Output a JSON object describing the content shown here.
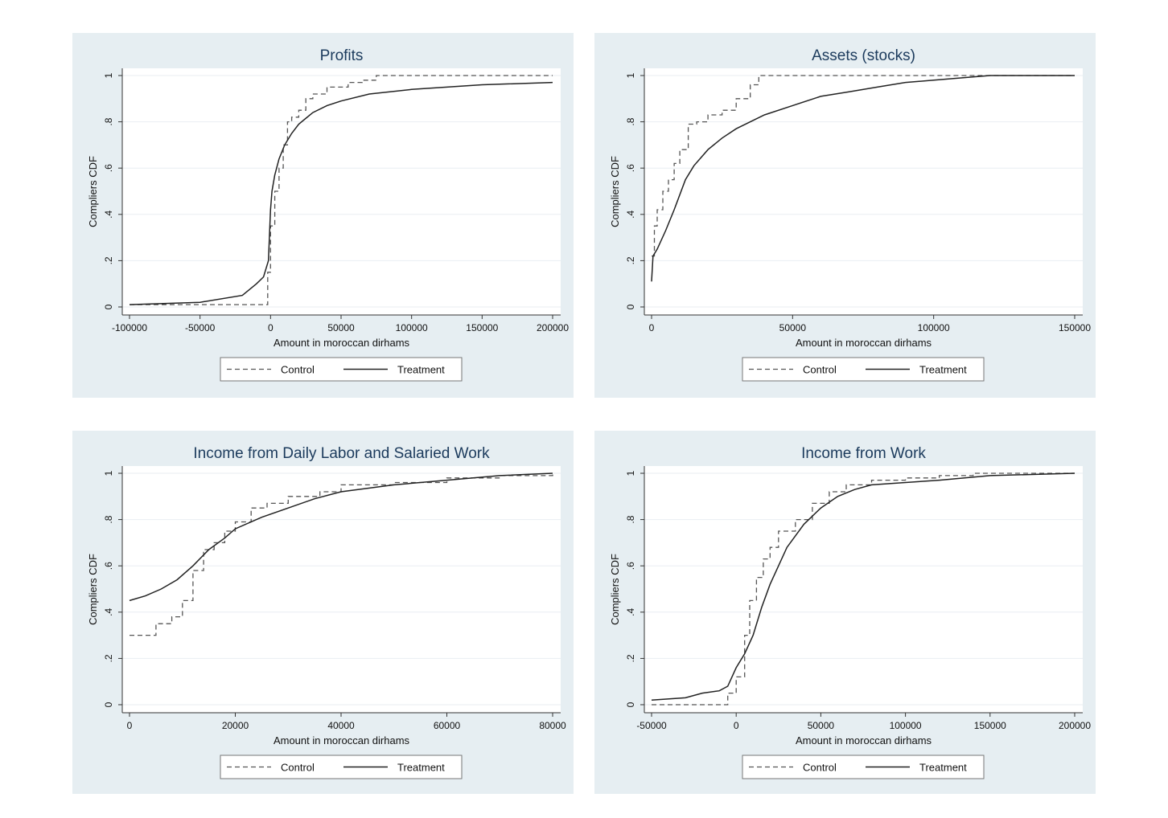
{
  "chart_data": [
    {
      "type": "line",
      "title": "Profits",
      "xlabel": "Amount in moroccan dirhams",
      "ylabel": "Compliers CDF",
      "xlim": [
        -100000,
        200000
      ],
      "ylim": [
        0,
        1
      ],
      "xticks": [
        -100000,
        -50000,
        0,
        50000,
        100000,
        150000,
        200000
      ],
      "xtick_labels": [
        "-100000",
        "-50000",
        "0",
        "50000",
        "100000",
        "150000",
        "200000"
      ],
      "yticks": [
        0,
        0.2,
        0.4,
        0.6,
        0.8,
        1
      ],
      "ytick_labels": [
        "0",
        ".2",
        ".4",
        ".6",
        ".8",
        "1"
      ],
      "grid": true,
      "legend": "bottom",
      "series": [
        {
          "name": "Control",
          "style": "dashed",
          "step": true,
          "x": [
            -100000,
            -5000,
            -2000,
            0,
            3000,
            6000,
            9000,
            12000,
            15000,
            20000,
            25000,
            30000,
            40000,
            55000,
            65000,
            75000,
            200000
          ],
          "y": [
            0.01,
            0.01,
            0.15,
            0.35,
            0.5,
            0.6,
            0.7,
            0.8,
            0.82,
            0.85,
            0.9,
            0.92,
            0.95,
            0.97,
            0.98,
            1.0,
            1.0
          ]
        },
        {
          "name": "Treatment",
          "style": "solid",
          "step": false,
          "x": [
            -100000,
            -50000,
            -20000,
            -10000,
            -5000,
            -1500,
            0,
            1000,
            3000,
            6000,
            10000,
            15000,
            20000,
            30000,
            40000,
            50000,
            70000,
            100000,
            150000,
            200000
          ],
          "y": [
            0.01,
            0.02,
            0.05,
            0.1,
            0.13,
            0.2,
            0.42,
            0.5,
            0.57,
            0.64,
            0.7,
            0.75,
            0.79,
            0.84,
            0.87,
            0.89,
            0.92,
            0.94,
            0.96,
            0.97
          ]
        }
      ]
    },
    {
      "type": "line",
      "title": "Assets (stocks)",
      "xlabel": "Amount in moroccan dirhams",
      "ylabel": "Compliers CDF",
      "xlim": [
        0,
        150000
      ],
      "ylim": [
        0,
        1
      ],
      "xticks": [
        0,
        50000,
        100000,
        150000
      ],
      "xtick_labels": [
        "0",
        "50000",
        "100000",
        "150000"
      ],
      "yticks": [
        0,
        0.2,
        0.4,
        0.6,
        0.8,
        1
      ],
      "ytick_labels": [
        "0",
        ".2",
        ".4",
        ".6",
        ".8",
        "1"
      ],
      "grid": true,
      "legend": "bottom",
      "series": [
        {
          "name": "Control",
          "style": "dashed",
          "step": true,
          "x": [
            0,
            1000,
            2000,
            4000,
            6000,
            8000,
            10000,
            13000,
            16000,
            20000,
            25000,
            30000,
            35000,
            38000,
            150000
          ],
          "y": [
            0.22,
            0.35,
            0.42,
            0.5,
            0.55,
            0.62,
            0.68,
            0.79,
            0.8,
            0.83,
            0.85,
            0.9,
            0.96,
            1.0,
            1.0
          ]
        },
        {
          "name": "Treatment",
          "style": "solid",
          "step": false,
          "x": [
            0,
            500,
            2000,
            5000,
            8000,
            12000,
            15000,
            20000,
            25000,
            30000,
            40000,
            50000,
            60000,
            70000,
            80000,
            90000,
            100000,
            120000,
            150000
          ],
          "y": [
            0.11,
            0.22,
            0.25,
            0.33,
            0.42,
            0.55,
            0.61,
            0.68,
            0.73,
            0.77,
            0.83,
            0.87,
            0.91,
            0.93,
            0.95,
            0.97,
            0.98,
            1.0,
            1.0
          ]
        }
      ]
    },
    {
      "type": "line",
      "title": "Income from Daily Labor and Salaried Work",
      "xlabel": "Amount in moroccan dirhams",
      "ylabel": "Compliers CDF",
      "xlim": [
        0,
        80000
      ],
      "ylim": [
        0,
        1
      ],
      "xticks": [
        0,
        20000,
        40000,
        60000,
        80000
      ],
      "xtick_labels": [
        "0",
        "20000",
        "40000",
        "60000",
        "80000"
      ],
      "yticks": [
        0,
        0.2,
        0.4,
        0.6,
        0.8,
        1
      ],
      "ytick_labels": [
        "0",
        ".2",
        ".4",
        ".6",
        ".8",
        "1"
      ],
      "grid": true,
      "legend": "bottom",
      "series": [
        {
          "name": "Control",
          "style": "dashed",
          "step": true,
          "x": [
            0,
            5000,
            8000,
            10000,
            12000,
            14000,
            16000,
            18000,
            20000,
            23000,
            26000,
            30000,
            36000,
            40000,
            50000,
            60000,
            70000,
            80000
          ],
          "y": [
            0.3,
            0.35,
            0.38,
            0.45,
            0.58,
            0.67,
            0.7,
            0.75,
            0.79,
            0.85,
            0.87,
            0.9,
            0.92,
            0.95,
            0.96,
            0.98,
            0.99,
            1.0
          ]
        },
        {
          "name": "Treatment",
          "style": "solid",
          "step": false,
          "x": [
            0,
            3000,
            6000,
            9000,
            12000,
            15000,
            18000,
            20000,
            25000,
            30000,
            35000,
            40000,
            50000,
            60000,
            70000,
            80000
          ],
          "y": [
            0.45,
            0.47,
            0.5,
            0.54,
            0.6,
            0.67,
            0.72,
            0.76,
            0.81,
            0.85,
            0.89,
            0.92,
            0.95,
            0.97,
            0.99,
            1.0
          ]
        }
      ]
    },
    {
      "type": "line",
      "title": "Income from Work",
      "xlabel": "Amount in moroccan dirhams",
      "ylabel": "Compliers CDF",
      "xlim": [
        -50000,
        200000
      ],
      "ylim": [
        0,
        1
      ],
      "xticks": [
        -50000,
        0,
        50000,
        100000,
        150000,
        200000
      ],
      "xtick_labels": [
        "-50000",
        "0",
        "50000",
        "100000",
        "150000",
        "200000"
      ],
      "yticks": [
        0,
        0.2,
        0.4,
        0.6,
        0.8,
        1
      ],
      "ytick_labels": [
        "0",
        ".2",
        ".4",
        ".6",
        ".8",
        "1"
      ],
      "grid": true,
      "legend": "bottom",
      "series": [
        {
          "name": "Control",
          "style": "dashed",
          "step": true,
          "x": [
            -50000,
            -5000,
            0,
            5000,
            8000,
            12000,
            16000,
            20000,
            25000,
            35000,
            45000,
            55000,
            65000,
            80000,
            100000,
            120000,
            140000,
            200000
          ],
          "y": [
            0.0,
            0.05,
            0.12,
            0.3,
            0.45,
            0.55,
            0.63,
            0.68,
            0.75,
            0.8,
            0.87,
            0.92,
            0.95,
            0.97,
            0.98,
            0.99,
            1.0,
            1.0
          ]
        },
        {
          "name": "Treatment",
          "style": "solid",
          "step": false,
          "x": [
            -50000,
            -30000,
            -20000,
            -10000,
            -5000,
            0,
            5000,
            10000,
            15000,
            20000,
            30000,
            40000,
            50000,
            60000,
            70000,
            80000,
            100000,
            120000,
            150000,
            200000
          ],
          "y": [
            0.02,
            0.03,
            0.05,
            0.06,
            0.08,
            0.16,
            0.22,
            0.3,
            0.42,
            0.52,
            0.68,
            0.78,
            0.85,
            0.9,
            0.93,
            0.95,
            0.96,
            0.97,
            0.99,
            1.0
          ]
        }
      ]
    }
  ]
}
